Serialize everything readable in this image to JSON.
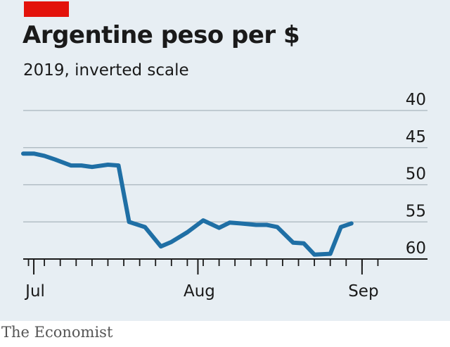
{
  "header": {
    "title": "Argentine peso per $",
    "subtitle": "2019, inverted scale"
  },
  "footer": {
    "source": "The Economist"
  },
  "colors": {
    "background": "#e7eef3",
    "accent": "#e3120b",
    "line": "#1f6fa5",
    "grid": "#a9b5bd"
  },
  "chart_data": {
    "type": "line",
    "title": "Argentine peso per $",
    "subtitle": "2019, inverted scale",
    "xlabel": "",
    "ylabel": "",
    "x_ticks": [
      {
        "date": "2019-07-01",
        "label": "Jul"
      },
      {
        "date": "2019-08-01",
        "label": "Aug"
      },
      {
        "date": "2019-09-01",
        "label": "Sep"
      }
    ],
    "xlim": [
      "2019-06-29",
      "2019-09-05"
    ],
    "ylim": [
      40,
      60
    ],
    "y_inverted": true,
    "y_ticks": [
      40,
      45,
      50,
      55,
      60
    ],
    "grid": true,
    "series": [
      {
        "x": [
          "2019-06-29",
          "2019-07-01",
          "2019-07-03",
          "2019-07-05",
          "2019-07-08",
          "2019-07-10",
          "2019-07-12",
          "2019-07-15",
          "2019-07-17",
          "2019-07-19",
          "2019-07-22",
          "2019-07-25",
          "2019-07-27",
          "2019-07-30",
          "2019-08-02",
          "2019-08-05",
          "2019-08-07",
          "2019-08-09",
          "2019-08-12",
          "2019-08-14",
          "2019-08-16",
          "2019-08-19",
          "2019-08-21",
          "2019-08-23",
          "2019-08-26",
          "2019-08-28",
          "2019-08-30",
          "2019-09-02",
          "2019-09-04"
        ],
        "values": [
          45.8,
          45.8,
          46.1,
          46.6,
          47.4,
          47.4,
          47.6,
          47.3,
          47.4,
          55.0,
          55.7,
          58.3,
          57.7,
          56.4,
          54.8,
          55.8,
          55.1,
          55.2,
          55.4,
          55.4,
          55.7,
          57.8,
          57.9,
          59.4,
          59.3,
          55.7,
          55.2,
          null,
          null
        ],
        "values_note_removed": true
      }
    ]
  }
}
